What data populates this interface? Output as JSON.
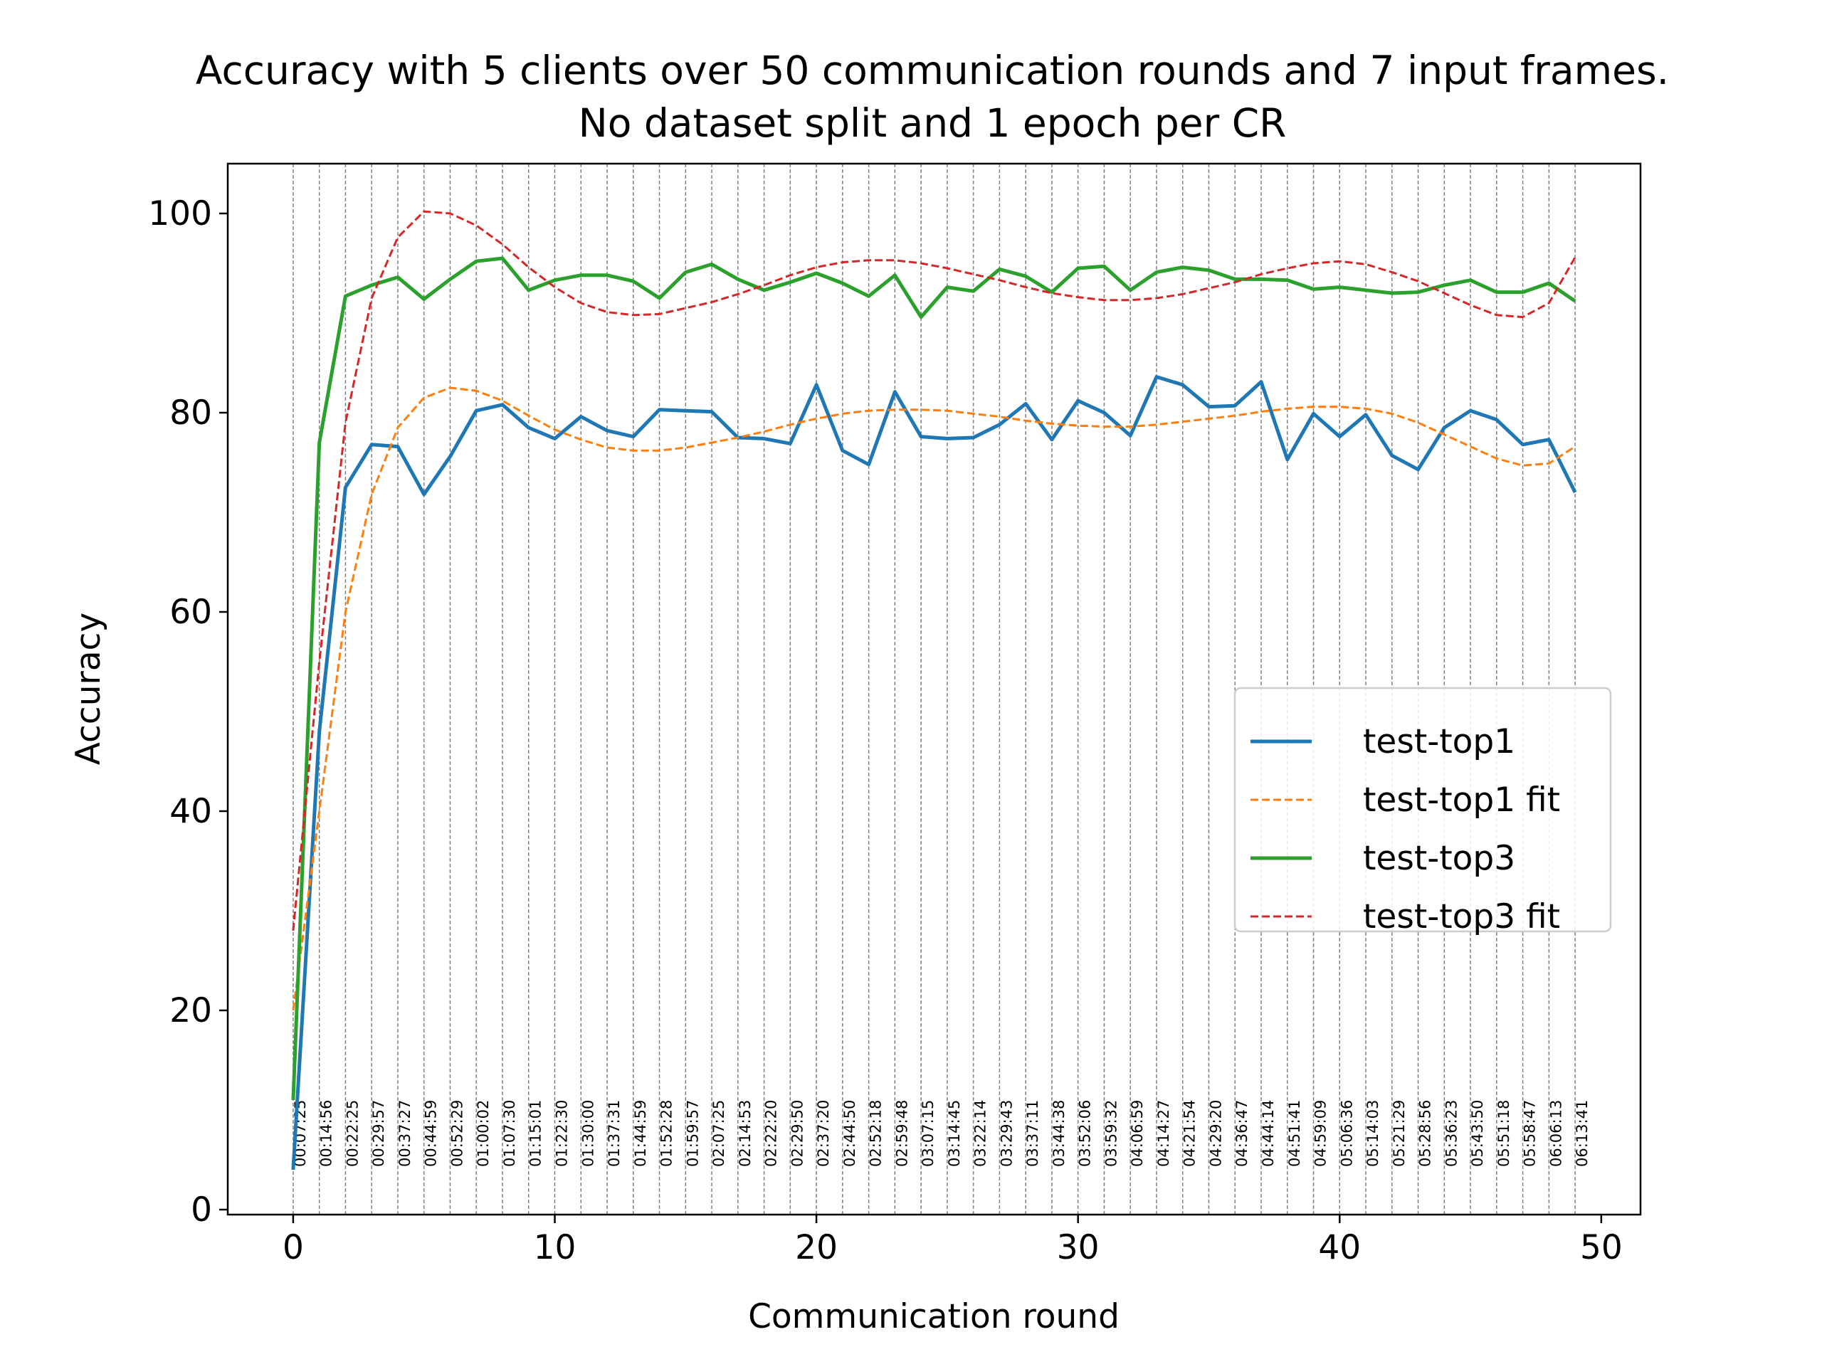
{
  "chart_data": {
    "type": "line",
    "title": "Accuracy with 5 clients over 50 communication rounds and 7 input frames.",
    "subtitle": "No dataset split and 1 epoch per CR",
    "xlabel": "Communication round",
    "ylabel": "Accuracy",
    "xlim": [
      -2.5,
      51.5
    ],
    "ylim": [
      -0.5,
      105
    ],
    "xticks": [
      0,
      10,
      20,
      30,
      40,
      50
    ],
    "yticks": [
      0,
      20,
      40,
      60,
      80,
      100
    ],
    "legend_position": "center-right",
    "grid": "vertical dashed line at each round",
    "x": [
      0,
      1,
      2,
      3,
      4,
      5,
      6,
      7,
      8,
      9,
      10,
      11,
      12,
      13,
      14,
      15,
      16,
      17,
      18,
      19,
      20,
      21,
      22,
      23,
      24,
      25,
      26,
      27,
      28,
      29,
      30,
      31,
      32,
      33,
      34,
      35,
      36,
      37,
      38,
      39,
      40,
      41,
      42,
      43,
      44,
      45,
      46,
      47,
      48,
      49
    ],
    "round_times": [
      "00:07:25",
      "00:14:56",
      "00:22:25",
      "00:29:57",
      "00:37:27",
      "00:44:59",
      "00:52:29",
      "01:00:02",
      "01:07:30",
      "01:15:01",
      "01:22:30",
      "01:30:00",
      "01:37:31",
      "01:44:59",
      "01:52:28",
      "01:59:57",
      "02:07:25",
      "02:14:53",
      "02:22:20",
      "02:29:50",
      "02:37:20",
      "02:44:50",
      "02:52:18",
      "02:59:48",
      "03:07:15",
      "03:14:45",
      "03:22:14",
      "03:29:43",
      "03:37:11",
      "03:44:38",
      "03:52:06",
      "03:59:32",
      "04:06:59",
      "04:14:27",
      "04:21:54",
      "04:29:20",
      "04:36:47",
      "04:44:14",
      "04:51:41",
      "04:59:09",
      "05:06:36",
      "05:14:03",
      "05:21:29",
      "05:28:56",
      "05:36:23",
      "05:43:50",
      "05:51:18",
      "05:58:47",
      "06:06:13",
      "06:13:41"
    ],
    "series": [
      {
        "name": "test-top1",
        "style": "solid",
        "color": "#1f77b4",
        "values": [
          4.0,
          48.0,
          72.5,
          76.8,
          76.6,
          71.8,
          75.6,
          80.2,
          80.8,
          78.5,
          77.4,
          79.6,
          78.2,
          77.6,
          80.3,
          80.2,
          80.1,
          77.5,
          77.4,
          76.9,
          82.8,
          76.2,
          74.8,
          82.1,
          77.6,
          77.4,
          77.5,
          78.8,
          80.9,
          77.3,
          81.2,
          80.0,
          77.7,
          83.6,
          82.8,
          80.6,
          80.7,
          83.1,
          75.3,
          79.9,
          77.6,
          79.8,
          75.7,
          74.3,
          78.5,
          80.2,
          79.3,
          76.8,
          77.3,
          72.0
        ]
      },
      {
        "name": "test-top1 fit",
        "style": "dashed",
        "color": "#ff7f0e",
        "values": [
          20.0,
          40.0,
          60.0,
          71.8,
          78.5,
          81.5,
          82.5,
          82.2,
          81.2,
          79.7,
          78.3,
          77.3,
          76.5,
          76.2,
          76.2,
          76.5,
          77.0,
          77.5,
          78.1,
          78.8,
          79.4,
          79.9,
          80.2,
          80.3,
          80.3,
          80.2,
          79.9,
          79.6,
          79.2,
          78.9,
          78.7,
          78.6,
          78.6,
          78.8,
          79.1,
          79.4,
          79.7,
          80.1,
          80.4,
          80.6,
          80.6,
          80.4,
          79.9,
          79.0,
          77.8,
          76.6,
          75.4,
          74.7,
          74.9,
          76.6
        ]
      },
      {
        "name": "test-top3",
        "style": "solid",
        "color": "#2ca02c",
        "values": [
          11.0,
          77.0,
          91.7,
          92.8,
          93.6,
          91.4,
          93.4,
          95.2,
          95.5,
          92.3,
          93.3,
          93.8,
          93.8,
          93.2,
          91.5,
          94.1,
          94.9,
          93.4,
          92.3,
          93.1,
          94.0,
          93.0,
          91.7,
          93.8,
          89.6,
          92.6,
          92.2,
          94.4,
          93.7,
          92.1,
          94.5,
          94.7,
          92.3,
          94.1,
          94.6,
          94.3,
          93.4,
          93.4,
          93.3,
          92.4,
          92.6,
          92.3,
          92.0,
          92.1,
          92.8,
          93.3,
          92.1,
          92.1,
          93.0,
          91.2
        ]
      },
      {
        "name": "test-top3 fit",
        "style": "dashed",
        "color": "#d62728",
        "values": [
          28.0,
          55.0,
          79.0,
          91.5,
          97.6,
          100.2,
          100.0,
          98.8,
          96.9,
          94.6,
          92.6,
          91.0,
          90.1,
          89.8,
          89.9,
          90.5,
          91.1,
          91.9,
          92.8,
          93.8,
          94.6,
          95.1,
          95.3,
          95.3,
          95.0,
          94.5,
          93.9,
          93.3,
          92.6,
          92.0,
          91.6,
          91.3,
          91.3,
          91.5,
          91.9,
          92.5,
          93.1,
          93.9,
          94.5,
          95.0,
          95.2,
          94.9,
          94.1,
          93.2,
          92.0,
          90.8,
          89.8,
          89.6,
          91.0,
          95.6
        ]
      }
    ]
  }
}
